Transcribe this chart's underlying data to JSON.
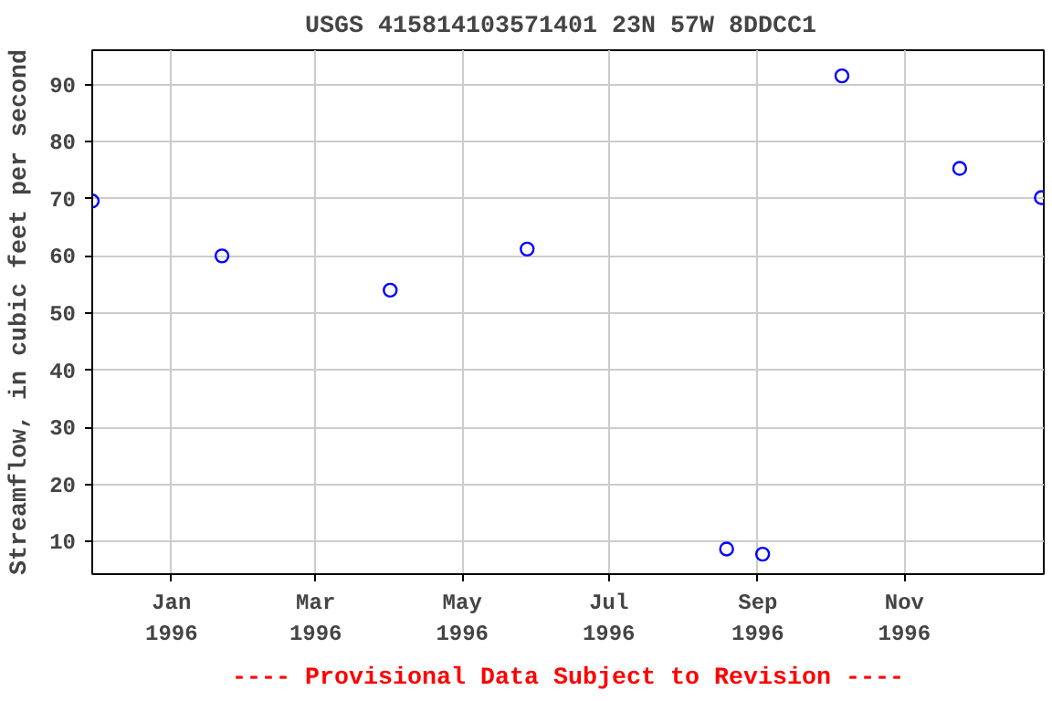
{
  "chart_data": {
    "type": "scatter",
    "title": "USGS 415814103571401  23N 57W 8DDCC1",
    "ylabel": "Streamflow, in cubic feet per second",
    "x": [
      "1995-11-29",
      "1996-01-22",
      "1996-04-01",
      "1996-05-28",
      "1996-08-19",
      "1996-09-03",
      "1996-10-06",
      "1996-11-24",
      "1996-12-28"
    ],
    "series": [
      {
        "color": "#0000ff",
        "values": [
          69.6,
          60.0,
          54.0,
          61.2,
          8.7,
          7.8,
          91.5,
          75.3,
          70.2
        ]
      }
    ],
    "xlim": [
      "1995-11-29",
      "1996-12-29"
    ],
    "xticks": [
      {
        "value": "1996-01-01",
        "label": "Jan\n1996"
      },
      {
        "value": "1996-03-01",
        "label": "Mar\n1996"
      },
      {
        "value": "1996-05-01",
        "label": "May\n1996"
      },
      {
        "value": "1996-07-01",
        "label": "Jul\n1996"
      },
      {
        "value": "1996-09-01",
        "label": "Sep\n1996"
      },
      {
        "value": "1996-11-01",
        "label": "Nov\n1996"
      }
    ],
    "ylim": [
      4.3,
      96
    ],
    "yticks": [
      10,
      20,
      30,
      40,
      50,
      60,
      70,
      80,
      90
    ],
    "grid": true,
    "marker": "circle",
    "annotations": [
      "---- Provisional Data Subject to Revision ----"
    ]
  }
}
